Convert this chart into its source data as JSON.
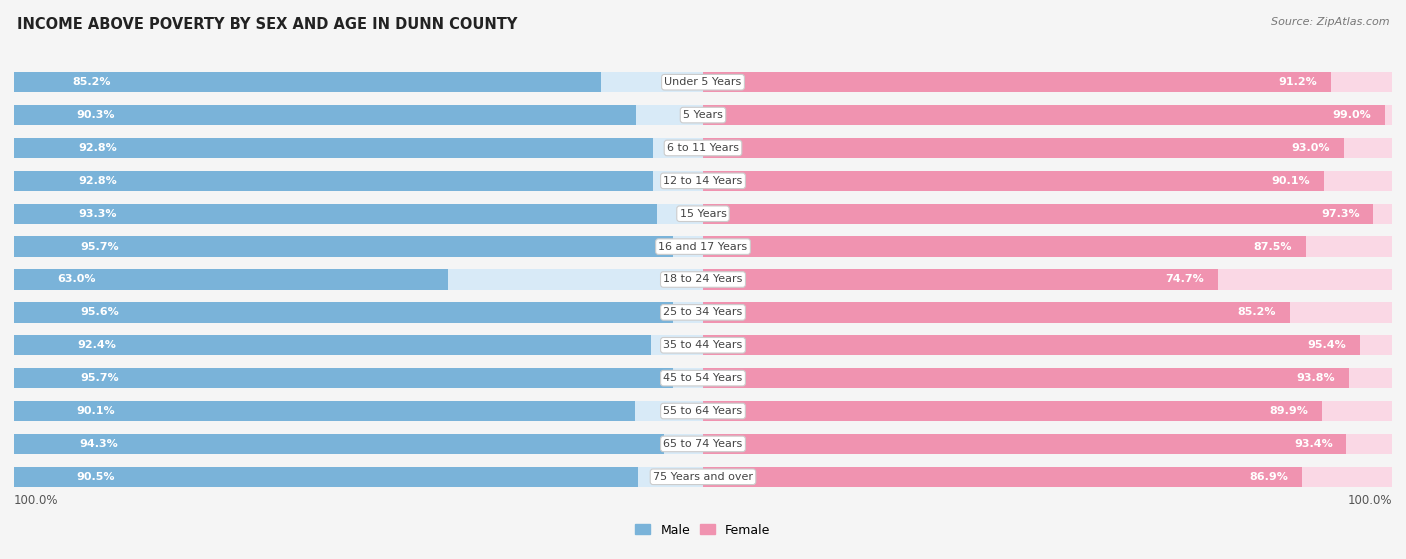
{
  "title": "INCOME ABOVE POVERTY BY SEX AND AGE IN DUNN COUNTY",
  "source": "Source: ZipAtlas.com",
  "categories": [
    "Under 5 Years",
    "5 Years",
    "6 to 11 Years",
    "12 to 14 Years",
    "15 Years",
    "16 and 17 Years",
    "18 to 24 Years",
    "25 to 34 Years",
    "35 to 44 Years",
    "45 to 54 Years",
    "55 to 64 Years",
    "65 to 74 Years",
    "75 Years and over"
  ],
  "male_values": [
    85.2,
    90.3,
    92.8,
    92.8,
    93.3,
    95.7,
    63.0,
    95.6,
    92.4,
    95.7,
    90.1,
    94.3,
    90.5
  ],
  "female_values": [
    91.2,
    99.0,
    93.0,
    90.1,
    97.3,
    87.5,
    74.7,
    85.2,
    95.4,
    93.8,
    89.9,
    93.4,
    86.9
  ],
  "male_color": "#7ab3d9",
  "female_color": "#f093b0",
  "male_bg_color": "#d8eaf7",
  "female_bg_color": "#fad8e5",
  "male_label": "Male",
  "female_label": "Female",
  "background_color": "#f5f5f5",
  "max_value": 100.0,
  "label_fontsize": 8.0,
  "title_fontsize": 10.5,
  "source_fontsize": 8,
  "cat_fontsize": 8.0
}
